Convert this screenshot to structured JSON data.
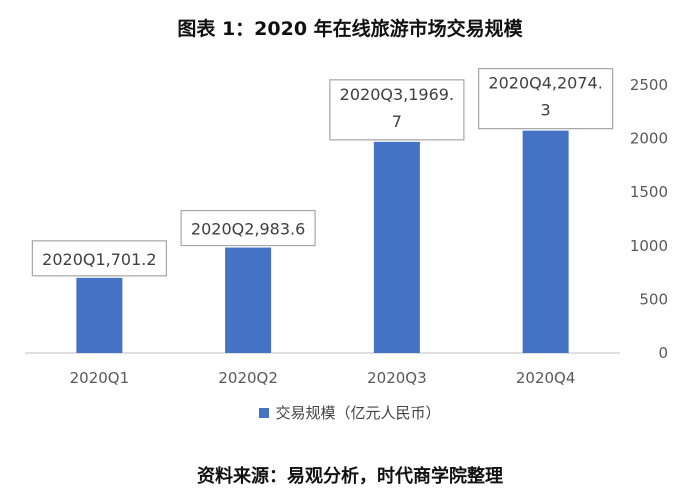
{
  "header": {
    "title": "图表 1：2020 年在线旅游市场交易规模"
  },
  "footer": {
    "source": "资料来源：易观分析，时代商学院整理"
  },
  "chart_data": {
    "type": "bar",
    "categories": [
      "2020Q1",
      "2020Q2",
      "2020Q3",
      "2020Q4"
    ],
    "series": [
      {
        "name": "交易规模（亿元人民币）",
        "values": [
          701.2,
          983.6,
          1969.7,
          2074.3
        ],
        "color": "#4472C4"
      }
    ],
    "data_labels": [
      [
        "2020Q1,701.2"
      ],
      [
        "2020Q2,983.6"
      ],
      [
        "2020Q3,1969.",
        "7"
      ],
      [
        "2020Q4,2074.",
        "3"
      ]
    ],
    "y_ticks": [
      "0",
      "500",
      "1000",
      "1500",
      "2000",
      "2500"
    ],
    "ylim": [
      0,
      2500
    ],
    "y_axis_position": "right",
    "grid": false,
    "legend_position": "bottom"
  }
}
